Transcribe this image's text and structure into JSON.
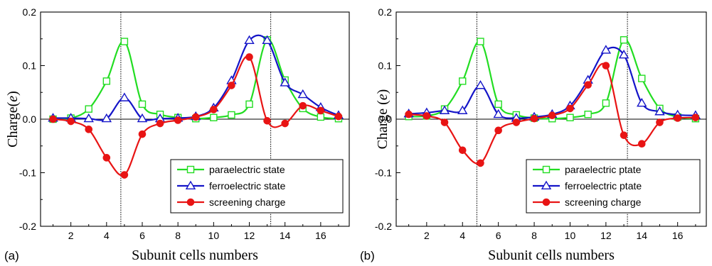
{
  "chart_data": [
    {
      "panel_label": "(a)",
      "type": "line",
      "xlabel": "Subunit cells numbers",
      "ylabel_main": "Charge(",
      "ylabel_italic": "e",
      "ylabel_tail": ")",
      "xlim": [
        0.3,
        17.6
      ],
      "ylim": [
        -0.2,
        0.2
      ],
      "xticks": [
        2,
        4,
        6,
        8,
        10,
        12,
        14,
        16
      ],
      "yticks": [
        -0.2,
        -0.1,
        0.0,
        0.1,
        0.2
      ],
      "ytick_labels": [
        "-0.2",
        "-0.1",
        "0.0",
        "0.1",
        "0.2"
      ],
      "vlines": [
        4.8,
        13.2
      ],
      "legend_position": "bottom-right",
      "series": [
        {
          "name": "paraelectric state",
          "color": "#22dd22",
          "marker": "square",
          "x": [
            1,
            2,
            3,
            4,
            5,
            6,
            7,
            8,
            9,
            10,
            11,
            12,
            13,
            14,
            15,
            16,
            17
          ],
          "y": [
            0.0,
            0.002,
            0.019,
            0.071,
            0.145,
            0.028,
            0.009,
            0.003,
            0.001,
            0.003,
            0.008,
            0.028,
            0.148,
            0.073,
            0.02,
            0.004,
            0.001
          ]
        },
        {
          "name": "ferroelectric state",
          "color": "#1414c8",
          "marker": "triangle",
          "x": [
            1,
            2,
            3,
            4,
            5,
            6,
            7,
            8,
            9,
            10,
            11,
            12,
            13,
            14,
            15,
            16,
            17
          ],
          "y": [
            0.002,
            0.002,
            0.001,
            0.001,
            0.04,
            0.001,
            0.001,
            0.002,
            0.005,
            0.021,
            0.072,
            0.147,
            0.147,
            0.068,
            0.046,
            0.022,
            0.007
          ]
        },
        {
          "name": "screening charge",
          "color": "#e81414",
          "marker": "circle",
          "x": [
            1,
            2,
            3,
            4,
            5,
            6,
            7,
            8,
            9,
            10,
            11,
            12,
            13,
            14,
            15,
            16,
            17
          ],
          "y": [
            0.0,
            -0.004,
            -0.019,
            -0.072,
            -0.104,
            -0.028,
            -0.008,
            -0.002,
            0.004,
            0.018,
            0.063,
            0.116,
            -0.003,
            -0.008,
            0.025,
            0.016,
            0.005
          ]
        }
      ]
    },
    {
      "panel_label": "(b)",
      "type": "line",
      "xlabel": "Subunit cells numbers",
      "ylabel_main": "Charge (",
      "ylabel_italic": "e",
      "ylabel_tail": ")",
      "xlim": [
        0.3,
        17.6
      ],
      "ylim": [
        -0.2,
        0.2
      ],
      "xticks": [
        2,
        4,
        6,
        8,
        10,
        12,
        14,
        16
      ],
      "yticks": [
        -0.2,
        -0.1,
        0.0,
        0.1,
        0.2
      ],
      "ytick_labels": [
        "-0.2",
        "-0.1",
        "0.0",
        "0.1",
        "0.2"
      ],
      "vlines": [
        4.8,
        13.2
      ],
      "legend_position": "bottom-right",
      "series": [
        {
          "name": "paraelectric ptate",
          "color": "#22dd22",
          "marker": "square",
          "x": [
            1,
            2,
            3,
            4,
            5,
            6,
            7,
            8,
            9,
            10,
            11,
            12,
            13,
            14,
            15,
            16,
            17
          ],
          "y": [
            0.005,
            0.006,
            0.019,
            0.071,
            0.145,
            0.028,
            0.008,
            0.002,
            0.001,
            0.003,
            0.009,
            0.03,
            0.148,
            0.076,
            0.02,
            0.004,
            0.001
          ]
        },
        {
          "name": "ferroelectric ptate",
          "color": "#1414c8",
          "marker": "triangle",
          "x": [
            1,
            2,
            3,
            4,
            5,
            6,
            7,
            8,
            9,
            10,
            11,
            12,
            13,
            14,
            15,
            16,
            17
          ],
          "y": [
            0.01,
            0.012,
            0.016,
            0.016,
            0.063,
            0.009,
            0.002,
            0.004,
            0.009,
            0.025,
            0.073,
            0.129,
            0.12,
            0.03,
            0.014,
            0.008,
            0.007
          ]
        },
        {
          "name": "screening charge",
          "color": "#e81414",
          "marker": "circle",
          "x": [
            1,
            2,
            3,
            4,
            5,
            6,
            7,
            8,
            9,
            10,
            11,
            12,
            13,
            14,
            15,
            16,
            17
          ],
          "y": [
            0.009,
            0.006,
            -0.006,
            -0.058,
            -0.082,
            -0.021,
            -0.006,
            0.001,
            0.007,
            0.02,
            0.064,
            0.1,
            -0.03,
            -0.046,
            -0.006,
            0.002,
            0.003
          ]
        }
      ]
    }
  ]
}
